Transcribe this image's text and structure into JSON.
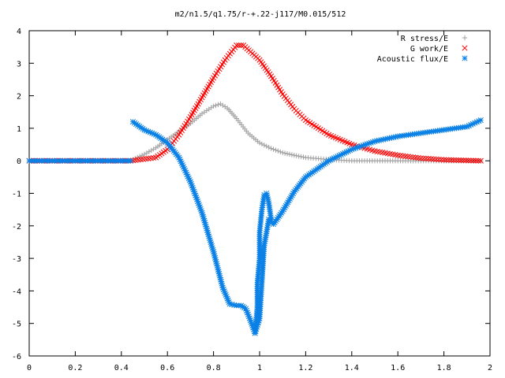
{
  "chart_data": {
    "type": "scatter",
    "title": "m2/n1.5/q1.75/r-+.22-j117/M0.015/512",
    "xlabel": "",
    "ylabel": "",
    "xlim": [
      0,
      2
    ],
    "ylim": [
      -6,
      4
    ],
    "x_ticks": [
      "0",
      "0.2",
      "0.4",
      "0.6",
      "0.8",
      "1",
      "1.2",
      "1.4",
      "1.6",
      "1.8",
      "2"
    ],
    "y_ticks": [
      "4",
      "3",
      "2",
      "1",
      "0",
      "-1",
      "-2",
      "-3",
      "-4",
      "-5",
      "-6"
    ],
    "grid": false,
    "legend_position": "top-right",
    "series": [
      {
        "name": "R stress/E",
        "marker": "plus",
        "color": "#a0a0a0",
        "points": [
          [
            0.44,
            0.0
          ],
          [
            0.5,
            0.2
          ],
          [
            0.55,
            0.4
          ],
          [
            0.6,
            0.65
          ],
          [
            0.65,
            0.9
          ],
          [
            0.7,
            1.15
          ],
          [
            0.75,
            1.45
          ],
          [
            0.8,
            1.68
          ],
          [
            0.83,
            1.75
          ],
          [
            0.86,
            1.62
          ],
          [
            0.9,
            1.3
          ],
          [
            0.95,
            0.85
          ],
          [
            1.0,
            0.55
          ],
          [
            1.05,
            0.38
          ],
          [
            1.1,
            0.25
          ],
          [
            1.15,
            0.17
          ],
          [
            1.2,
            0.1
          ],
          [
            1.3,
            0.04
          ],
          [
            1.4,
            0.0
          ],
          [
            1.6,
            0.0
          ],
          [
            1.8,
            0.0
          ],
          [
            1.96,
            0.0
          ]
        ]
      },
      {
        "name": "G work/E",
        "marker": "cross",
        "color": "#ff0000",
        "points": [
          [
            0.0,
            0.0
          ],
          [
            0.2,
            0.0
          ],
          [
            0.44,
            0.0
          ],
          [
            0.55,
            0.1
          ],
          [
            0.6,
            0.35
          ],
          [
            0.65,
            0.8
          ],
          [
            0.7,
            1.35
          ],
          [
            0.75,
            1.95
          ],
          [
            0.8,
            2.55
          ],
          [
            0.85,
            3.1
          ],
          [
            0.9,
            3.55
          ],
          [
            0.93,
            3.55
          ],
          [
            1.0,
            3.1
          ],
          [
            1.05,
            2.6
          ],
          [
            1.1,
            2.05
          ],
          [
            1.15,
            1.6
          ],
          [
            1.2,
            1.25
          ],
          [
            1.3,
            0.8
          ],
          [
            1.4,
            0.5
          ],
          [
            1.5,
            0.3
          ],
          [
            1.6,
            0.17
          ],
          [
            1.7,
            0.08
          ],
          [
            1.8,
            0.03
          ],
          [
            1.96,
            0.0
          ]
        ]
      },
      {
        "name": "Acoustic flux/E",
        "marker": "star",
        "color": "#0a80e6",
        "segments": [
          [
            [
              0.0,
              0.0
            ],
            [
              0.2,
              0.0
            ],
            [
              0.44,
              0.0
            ]
          ],
          [
            [
              0.45,
              1.2
            ],
            [
              0.5,
              0.95
            ],
            [
              0.55,
              0.8
            ],
            [
              0.6,
              0.55
            ],
            [
              0.65,
              0.1
            ],
            [
              0.7,
              -0.65
            ],
            [
              0.75,
              -1.6
            ],
            [
              0.8,
              -2.8
            ],
            [
              0.84,
              -3.9
            ],
            [
              0.87,
              -4.4
            ],
            [
              0.9,
              -4.45
            ],
            [
              0.92,
              -4.45
            ],
            [
              0.94,
              -4.55
            ],
            [
              0.96,
              -4.9
            ],
            [
              0.98,
              -5.3
            ],
            [
              1.0,
              -4.85
            ],
            [
              1.02,
              -2.6
            ],
            [
              1.04,
              -1.8
            ],
            [
              1.06,
              -1.95
            ],
            [
              1.1,
              -1.55
            ],
            [
              1.15,
              -0.95
            ],
            [
              1.2,
              -0.5
            ],
            [
              1.3,
              0.0
            ],
            [
              1.4,
              0.35
            ],
            [
              1.5,
              0.6
            ],
            [
              1.6,
              0.75
            ],
            [
              1.7,
              0.85
            ],
            [
              1.8,
              0.95
            ],
            [
              1.9,
              1.05
            ],
            [
              1.96,
              1.25
            ]
          ],
          [
            [
              0.98,
              -5.3
            ],
            [
              0.99,
              -4.5
            ],
            [
              0.99,
              -3.8
            ],
            [
              1.0,
              -3.0
            ],
            [
              1.0,
              -2.2
            ],
            [
              1.01,
              -1.5
            ],
            [
              1.02,
              -1.05
            ],
            [
              1.03,
              -1.0
            ],
            [
              1.04,
              -1.3
            ],
            [
              1.05,
              -1.8
            ]
          ]
        ]
      }
    ]
  }
}
